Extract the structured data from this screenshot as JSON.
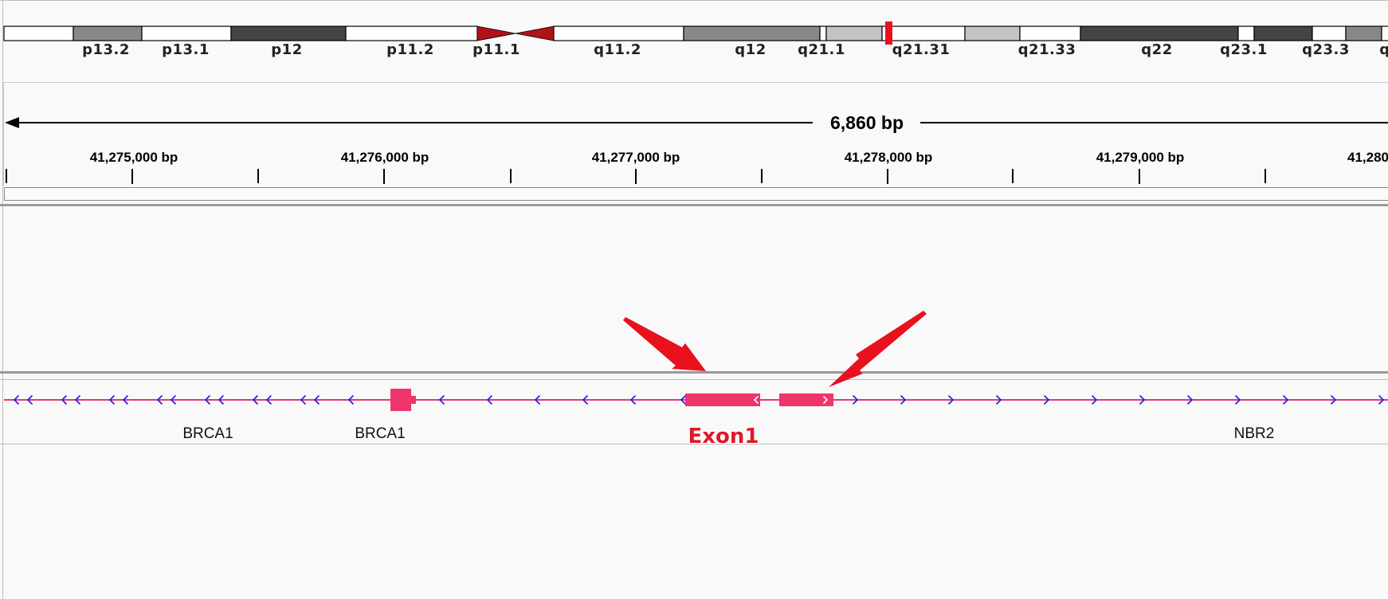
{
  "ideogram": {
    "bands": [
      {
        "label": "p13.2"
      },
      {
        "label": "p13.1"
      },
      {
        "label": "p12"
      },
      {
        "label": "p11.2"
      },
      {
        "label": "p11.1"
      },
      {
        "label": "q11.2"
      },
      {
        "label": "q12"
      },
      {
        "label": "q21.1"
      },
      {
        "label": "q21.31"
      },
      {
        "label": "q21.33"
      },
      {
        "label": "q22"
      },
      {
        "label": "q23.1"
      },
      {
        "label": "q23.3"
      },
      {
        "label": "q"
      }
    ],
    "current_region_color": "#e8111d",
    "centromere_color": "#b01218"
  },
  "ruler": {
    "span_label": "6,860 bp",
    "coordinates": [
      {
        "label": "41,275,000 bp"
      },
      {
        "label": "41,276,000 bp"
      },
      {
        "label": "41,277,000 bp"
      },
      {
        "label": "41,278,000 bp"
      },
      {
        "label": "41,279,000 bp"
      },
      {
        "label": "41,280"
      }
    ]
  },
  "gene_track": {
    "genes": [
      {
        "label": "BRCA1"
      },
      {
        "label": "BRCA1"
      },
      {
        "label": "NBR2"
      }
    ],
    "feature_color": "#f0346c",
    "strand_arrow_color": "#1a1aee"
  },
  "annotation": {
    "label": "Exon1",
    "color": "#e0182a"
  }
}
